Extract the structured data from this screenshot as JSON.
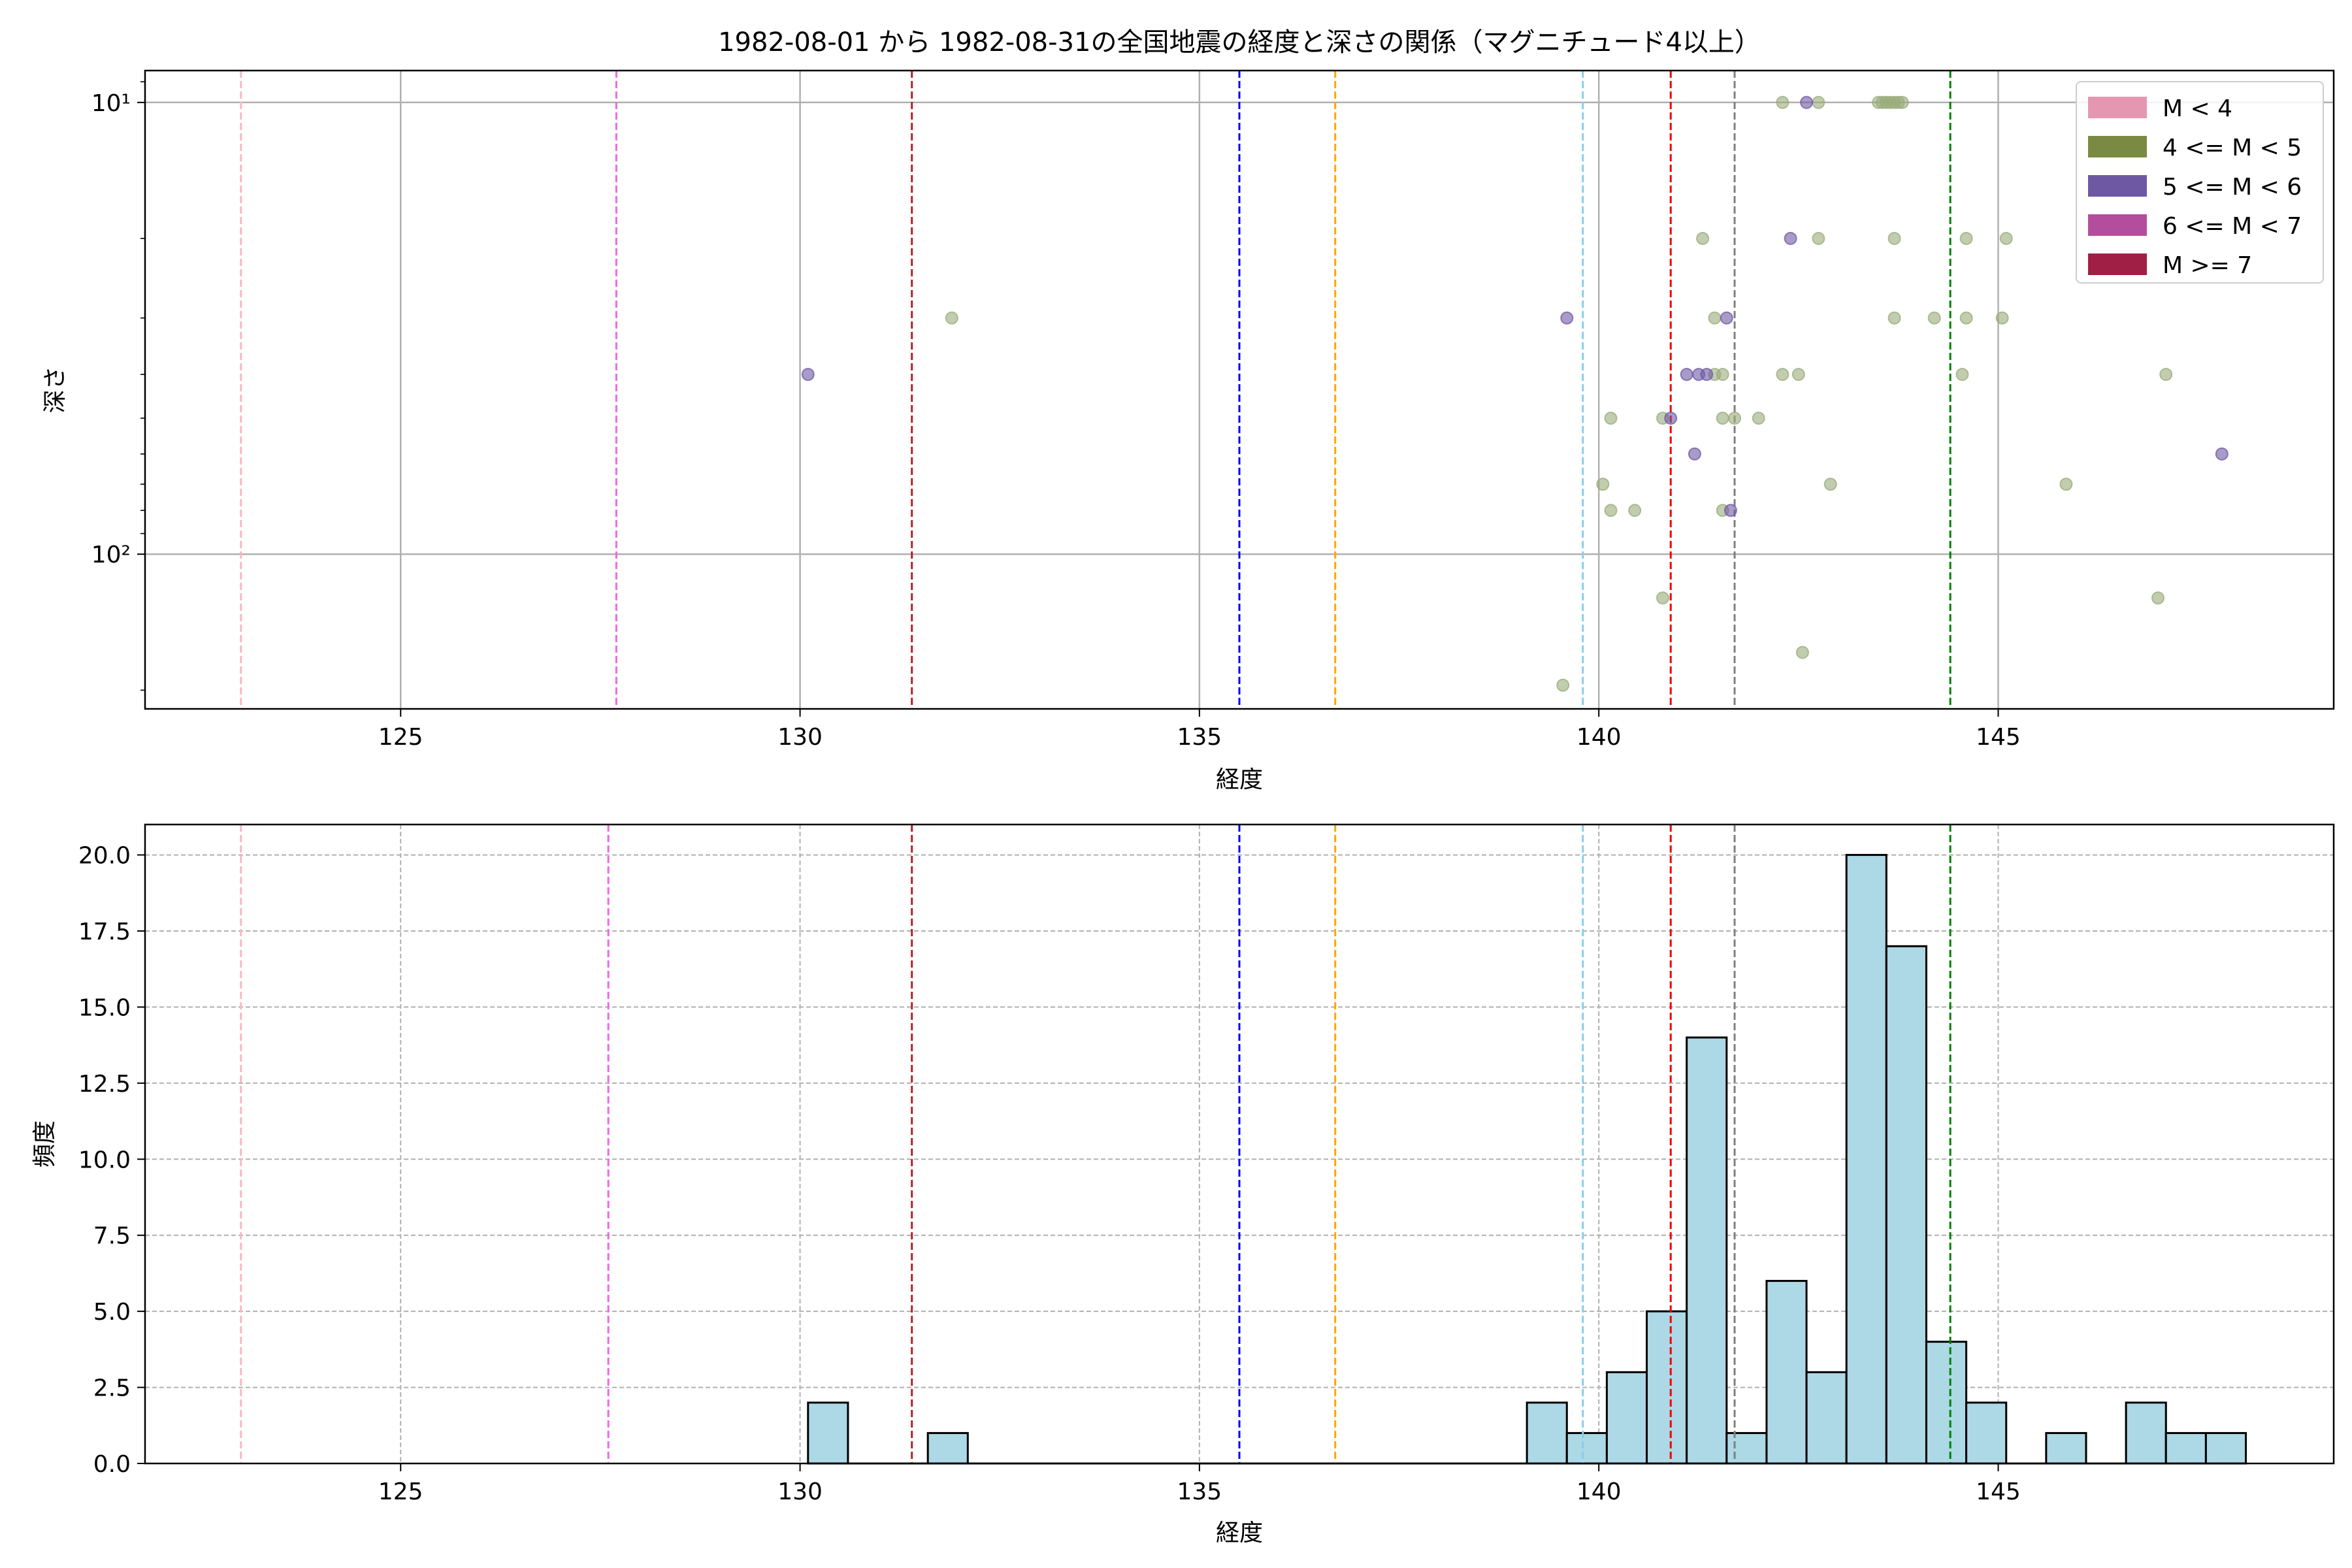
{
  "chart_data": [
    {
      "type": "scatter",
      "title": "1982-08-01 から 1982-08-31の全国地震の経度と深さの関係（マグニチュード4以上）",
      "xlabel": "経度",
      "ylabel": "深さ",
      "xlim": [
        121.8,
        149.2
      ],
      "ylim": [
        220,
        8.5
      ],
      "yscale": "log",
      "inverted_y": true,
      "xticks": [
        125,
        130,
        135,
        140,
        145
      ],
      "xtick_labels": [
        "125",
        "130",
        "135",
        "140",
        "145"
      ],
      "yticks": [
        10,
        100
      ],
      "ytick_labels": [
        "10¹",
        "10²"
      ],
      "grid": true,
      "legend": {
        "position": "top-right",
        "entries": [
          {
            "label": "M < 4",
            "color": "#e597b1"
          },
          {
            "label": "4 <= M < 5",
            "color": "#7a8a43"
          },
          {
            "label": "5 <= M < 6",
            "color": "#6e58a4"
          },
          {
            "label": "6 <= M < 7",
            "color": "#b44d9e"
          },
          {
            "label": "M >= 7",
            "color": "#a01f44"
          }
        ]
      },
      "vlines": [
        {
          "x": 123.0,
          "color": "#ffb6c1"
        },
        {
          "x": 127.7,
          "color": "#ee66ee"
        },
        {
          "x": 131.4,
          "color": "#b22222"
        },
        {
          "x": 135.5,
          "color": "#0000ee"
        },
        {
          "x": 136.7,
          "color": "#ffa500"
        },
        {
          "x": 139.8,
          "color": "#87ceeb"
        },
        {
          "x": 140.9,
          "color": "#ee0000"
        },
        {
          "x": 141.7,
          "color": "#808080"
        },
        {
          "x": 144.4,
          "color": "#008000"
        }
      ],
      "series": [
        {
          "color": "#9aab7a",
          "points": [
            [
              142.3,
              10
            ],
            [
              142.75,
              10
            ],
            [
              143.5,
              10
            ],
            [
              143.55,
              10
            ],
            [
              143.6,
              10
            ],
            [
              143.65,
              10
            ],
            [
              143.7,
              10
            ],
            [
              143.75,
              10
            ],
            [
              143.8,
              10
            ],
            [
              141.3,
              20
            ],
            [
              142.75,
              20
            ],
            [
              143.7,
              20
            ],
            [
              144.6,
              20
            ],
            [
              145.1,
              20
            ],
            [
              131.9,
              30
            ],
            [
              141.45,
              30
            ],
            [
              143.7,
              30
            ],
            [
              144.2,
              30
            ],
            [
              144.6,
              30
            ],
            [
              145.05,
              30
            ],
            [
              141.45,
              40
            ],
            [
              141.55,
              40
            ],
            [
              142.3,
              40
            ],
            [
              142.5,
              40
            ],
            [
              144.55,
              40
            ],
            [
              147.1,
              40
            ],
            [
              140.15,
              50
            ],
            [
              140.8,
              50
            ],
            [
              141.55,
              50
            ],
            [
              141.7,
              50
            ],
            [
              142.0,
              50
            ],
            [
              140.05,
              70
            ],
            [
              145.85,
              70
            ],
            [
              142.9,
              70
            ],
            [
              140.15,
              80
            ],
            [
              140.45,
              80
            ],
            [
              141.55,
              80
            ],
            [
              140.8,
              125
            ],
            [
              147.0,
              125
            ],
            [
              142.55,
              165
            ],
            [
              139.55,
              195
            ]
          ]
        },
        {
          "color": "#6e58a4",
          "points": [
            [
              142.6,
              10
            ],
            [
              142.4,
              20
            ],
            [
              139.6,
              30
            ],
            [
              141.6,
              30
            ],
            [
              130.1,
              40
            ],
            [
              141.1,
              40
            ],
            [
              141.25,
              40
            ],
            [
              141.35,
              40
            ],
            [
              140.9,
              50
            ],
            [
              141.2,
              60
            ],
            [
              147.8,
              60
            ],
            [
              141.65,
              80
            ]
          ]
        }
      ]
    },
    {
      "type": "bar",
      "title": "",
      "xlabel": "経度",
      "ylabel": "頻度",
      "xlim": [
        121.8,
        149.2
      ],
      "ylim": [
        0,
        21
      ],
      "xticks": [
        125,
        130,
        135,
        140,
        145
      ],
      "xtick_labels": [
        "125",
        "130",
        "135",
        "140",
        "145"
      ],
      "yticks": [
        0,
        2.5,
        5,
        7.5,
        10,
        12.5,
        15,
        17.5,
        20
      ],
      "ytick_labels": [
        "0.0",
        "2.5",
        "5.0",
        "7.5",
        "10.0",
        "12.5",
        "15.0",
        "17.5",
        "20.0"
      ],
      "grid": true,
      "bar_color": "#add8e6",
      "bin_width": 0.5,
      "vlines": [
        {
          "x": 123.0,
          "color": "#ffb6c1"
        },
        {
          "x": 127.6,
          "color": "#ee66ee"
        },
        {
          "x": 131.4,
          "color": "#b22222"
        },
        {
          "x": 135.5,
          "color": "#0000ee"
        },
        {
          "x": 136.7,
          "color": "#ffa500"
        },
        {
          "x": 139.8,
          "color": "#87ceeb"
        },
        {
          "x": 140.9,
          "color": "#ee0000"
        },
        {
          "x": 141.7,
          "color": "#808080"
        },
        {
          "x": 144.4,
          "color": "#008000"
        }
      ],
      "bins": [
        {
          "x0": 130.1,
          "value": 2
        },
        {
          "x0": 131.6,
          "value": 1
        },
        {
          "x0": 139.1,
          "value": 2
        },
        {
          "x0": 139.6,
          "value": 1
        },
        {
          "x0": 140.1,
          "value": 3
        },
        {
          "x0": 140.6,
          "value": 5
        },
        {
          "x0": 141.1,
          "value": 14
        },
        {
          "x0": 141.6,
          "value": 1
        },
        {
          "x0": 142.1,
          "value": 6
        },
        {
          "x0": 142.6,
          "value": 3
        },
        {
          "x0": 143.1,
          "value": 20
        },
        {
          "x0": 143.6,
          "value": 17
        },
        {
          "x0": 144.1,
          "value": 4
        },
        {
          "x0": 144.6,
          "value": 2
        },
        {
          "x0": 145.6,
          "value": 1
        },
        {
          "x0": 146.6,
          "value": 2
        },
        {
          "x0": 147.1,
          "value": 1
        },
        {
          "x0": 147.6,
          "value": 1
        }
      ]
    }
  ]
}
